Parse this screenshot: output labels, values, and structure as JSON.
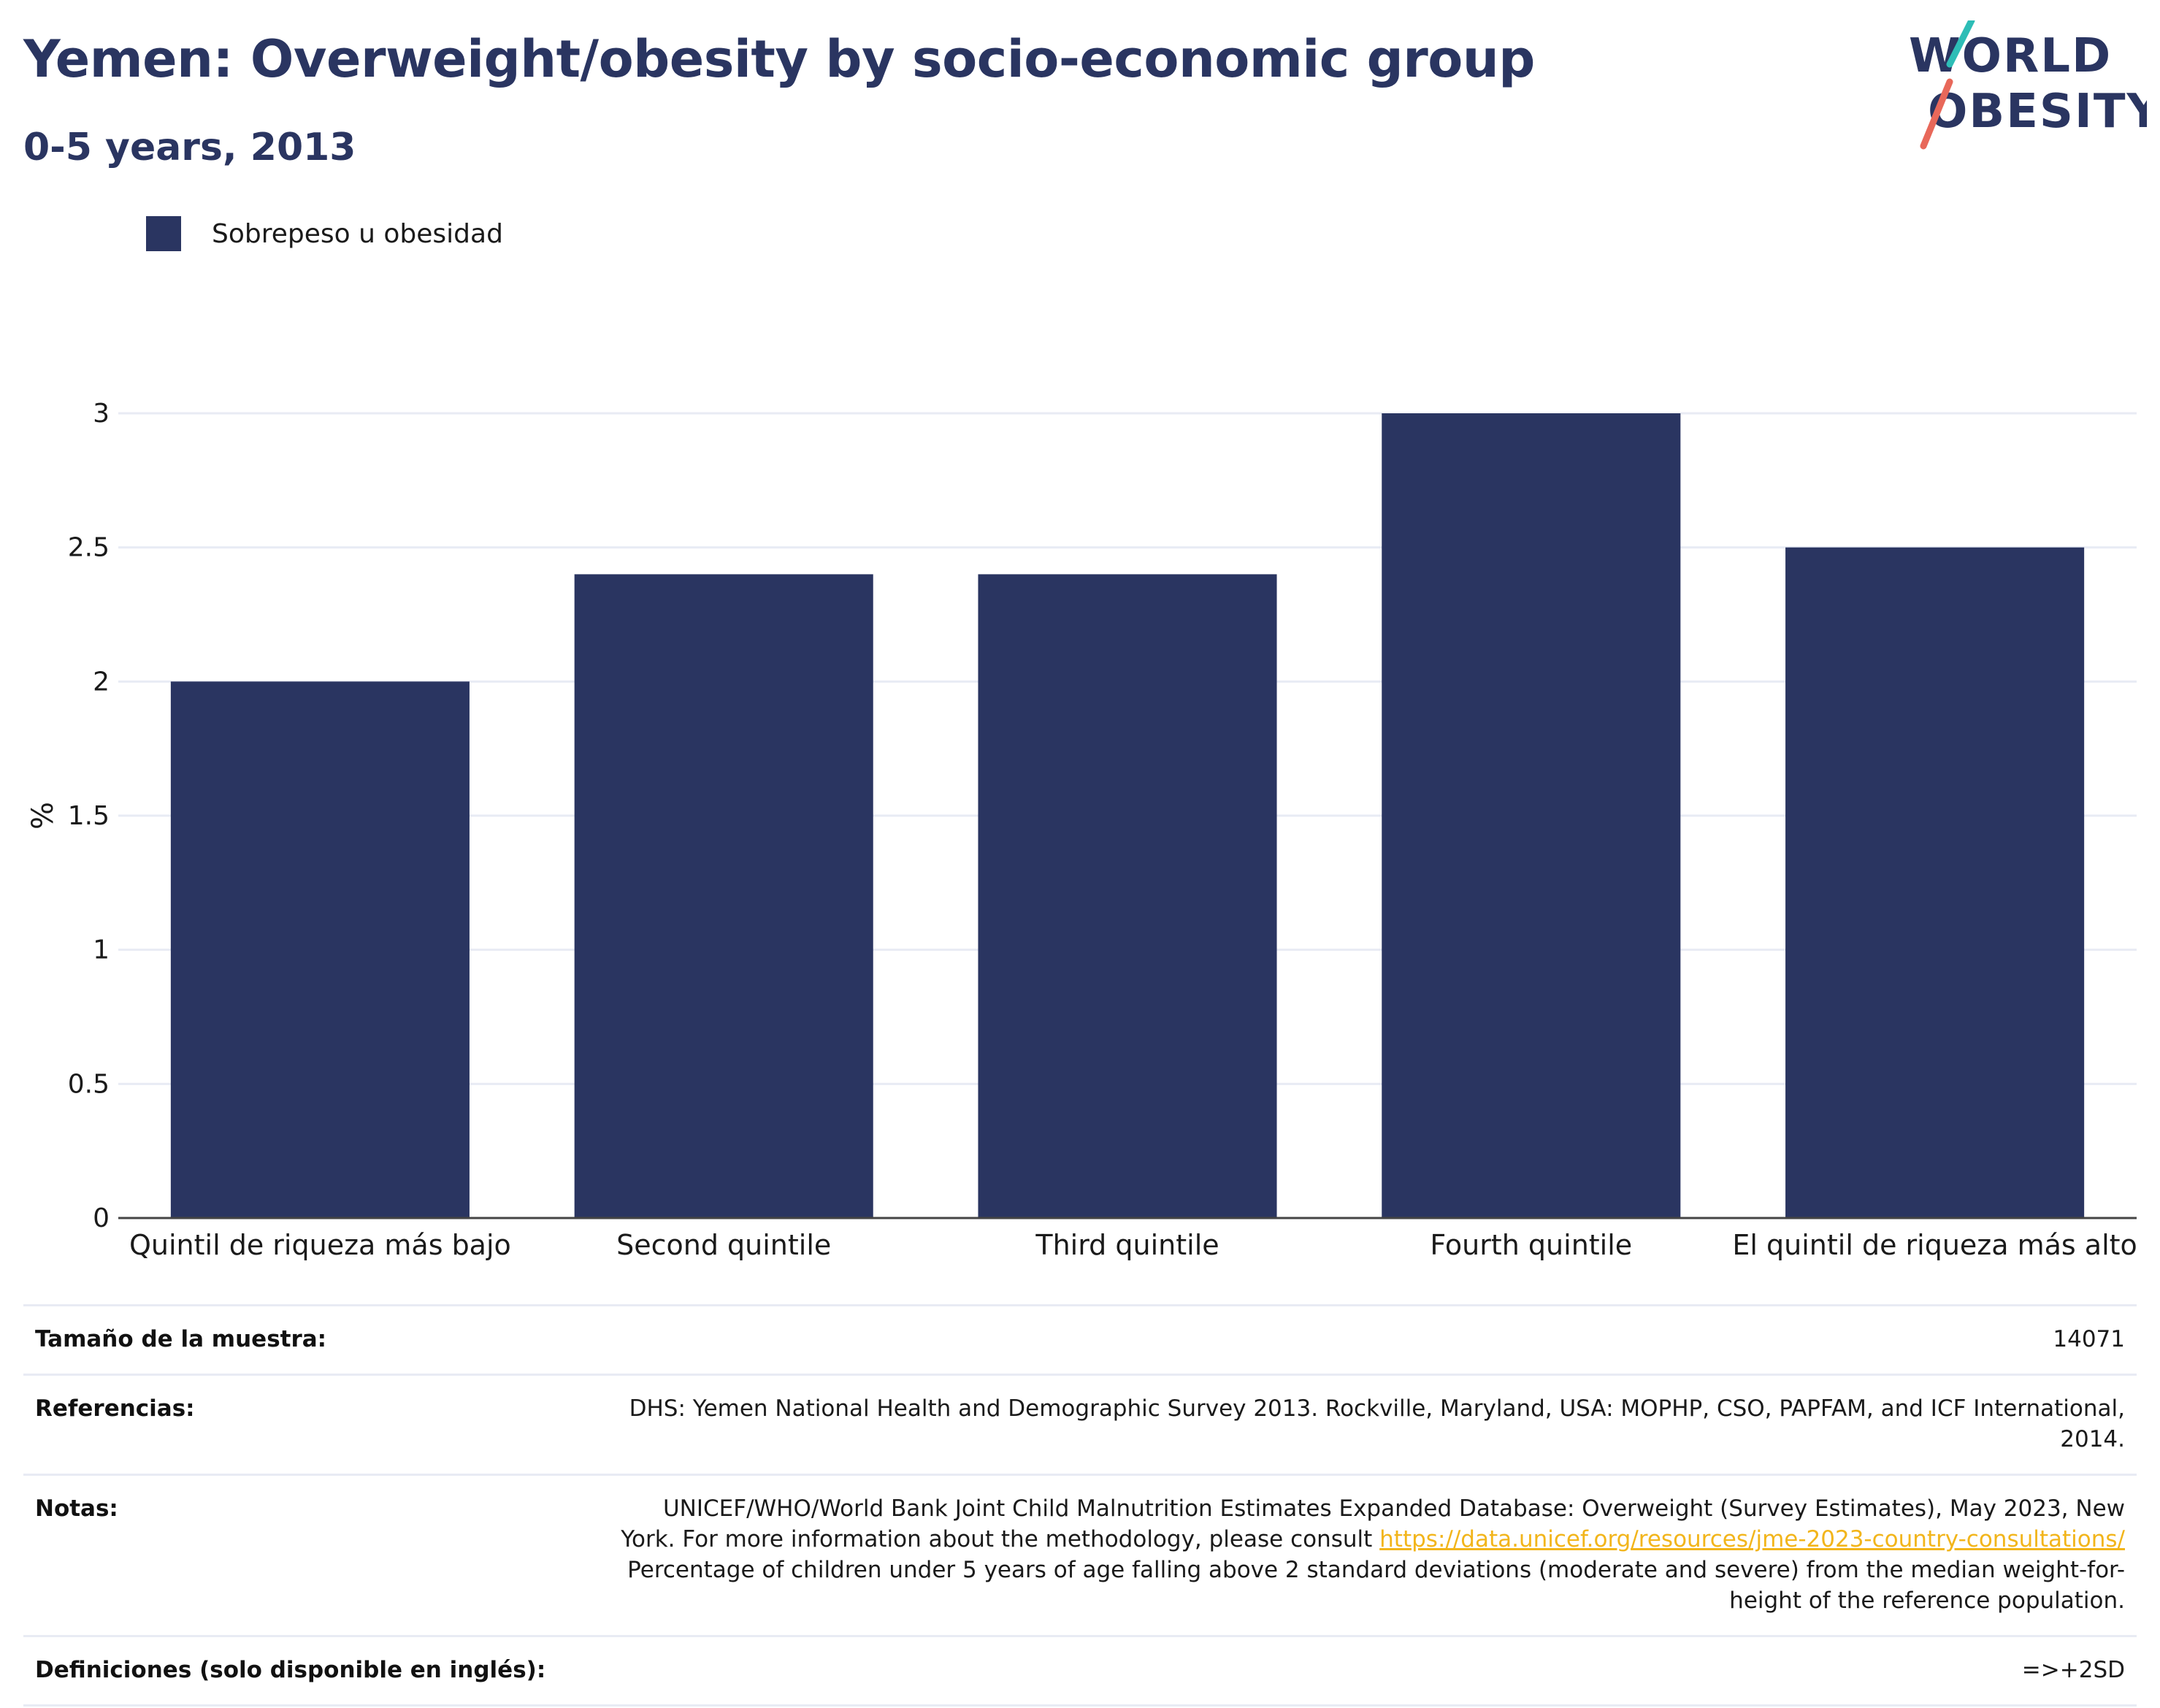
{
  "header": {
    "title": "Yemen: Overweight/obesity by socio-economic group",
    "subtitle": "0-5 years, 2013"
  },
  "logo": {
    "line1": "WORLD",
    "line2": "OBESITY",
    "accent_teal": "#2dbdb6",
    "accent_coral": "#e8685a"
  },
  "legend": {
    "label": "Sobrepeso u obesidad",
    "color": "#2a3561"
  },
  "chart_data": {
    "type": "bar",
    "categories": [
      "Quintil de riqueza más bajo",
      "Second quintile",
      "Third quintile",
      "Fourth quintile",
      "El quintil de riqueza más alto"
    ],
    "series": [
      {
        "name": "Sobrepeso u obesidad",
        "values": [
          2.0,
          2.4,
          2.4,
          3.0,
          2.5
        ],
        "color": "#2a3561"
      }
    ],
    "ylabel": "%",
    "ylim": [
      0,
      3
    ],
    "yticks": [
      0,
      0.5,
      1,
      1.5,
      2,
      2.5,
      3
    ],
    "ytick_labels": [
      "0",
      "0.5",
      "1",
      "1.5",
      "2",
      "2.5",
      "3"
    ],
    "grid": true,
    "legend_position": "top-left"
  },
  "info": {
    "sample_size_label": "Tamaño de la muestra:",
    "sample_size_value": "14071",
    "references_label": "Referencias:",
    "references_value": "DHS: Yemen National Health and Demographic Survey 2013. Rockville, Maryland, USA: MOPHP, CSO, PAPFAM, and ICF International, 2014.",
    "notes_label": "Notas:",
    "notes_text_before": "UNICEF/WHO/World Bank Joint Child Malnutrition Estimates Expanded Database: Overweight (Survey Estimates), May 2023, New York. For more information about the methodology, please consult ",
    "notes_link": "https://data.unicef.org/resources/jme-2023-country-consultations/",
    "notes_text_after": " Percentage of children under 5 years of age falling above 2 standard deviations (moderate and severe) from the median weight-for-height of the reference population.",
    "definitions_label": "Definiciones (solo disponible en inglés):",
    "definitions_value": "=>+2SD"
  }
}
